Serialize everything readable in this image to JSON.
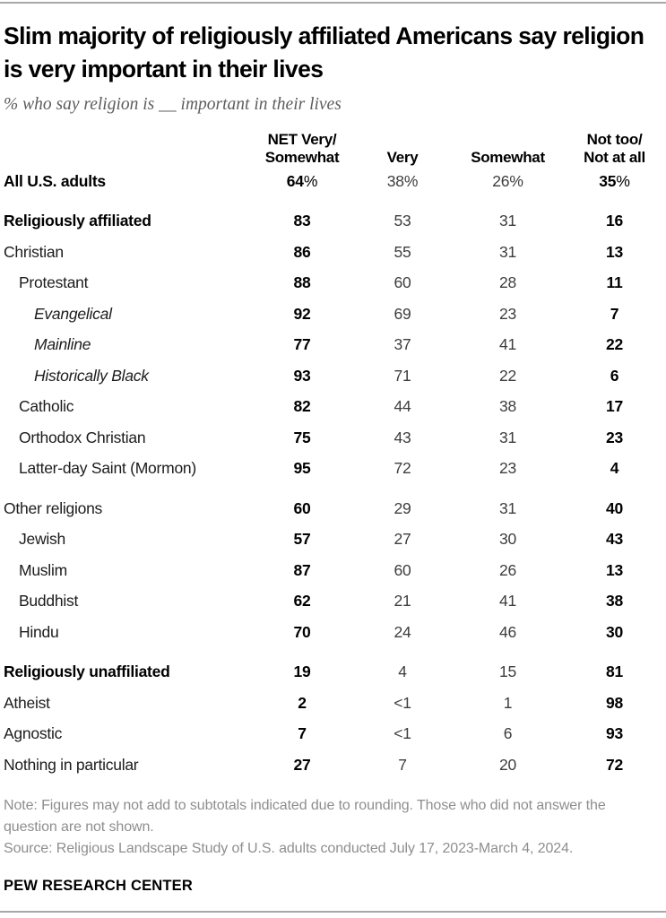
{
  "chart_data": {
    "type": "table",
    "title": "Slim majority of religiously affiliated Americans say religion is very important in their lives",
    "subtitle": "% who say religion is __ important in their lives",
    "columns": [
      "NET Very/\nSomewhat",
      "Very",
      "Somewhat",
      "Not too/\nNot at all"
    ],
    "percent_sign": "%",
    "bold_columns": [
      0,
      3
    ],
    "rows": [
      {
        "label": "All U.S. adults",
        "indent": 0,
        "bold": true,
        "italic": false,
        "gap_before": false,
        "percent_suffix": true,
        "values": [
          "64",
          "38",
          "26",
          "35"
        ]
      },
      {
        "label": "Religiously affiliated",
        "indent": 0,
        "bold": true,
        "italic": false,
        "gap_before": true,
        "percent_suffix": false,
        "values": [
          "83",
          "53",
          "31",
          "16"
        ]
      },
      {
        "label": "Christian",
        "indent": 0,
        "bold": false,
        "italic": false,
        "gap_before": false,
        "percent_suffix": false,
        "values": [
          "86",
          "55",
          "31",
          "13"
        ]
      },
      {
        "label": "Protestant",
        "indent": 1,
        "bold": false,
        "italic": false,
        "gap_before": false,
        "percent_suffix": false,
        "values": [
          "88",
          "60",
          "28",
          "11"
        ]
      },
      {
        "label": "Evangelical",
        "indent": 2,
        "bold": false,
        "italic": true,
        "gap_before": false,
        "percent_suffix": false,
        "values": [
          "92",
          "69",
          "23",
          "7"
        ]
      },
      {
        "label": "Mainline",
        "indent": 2,
        "bold": false,
        "italic": true,
        "gap_before": false,
        "percent_suffix": false,
        "values": [
          "77",
          "37",
          "41",
          "22"
        ]
      },
      {
        "label": "Historically Black",
        "indent": 2,
        "bold": false,
        "italic": true,
        "gap_before": false,
        "percent_suffix": false,
        "values": [
          "93",
          "71",
          "22",
          "6"
        ]
      },
      {
        "label": "Catholic",
        "indent": 1,
        "bold": false,
        "italic": false,
        "gap_before": false,
        "percent_suffix": false,
        "values": [
          "82",
          "44",
          "38",
          "17"
        ]
      },
      {
        "label": "Orthodox Christian",
        "indent": 1,
        "bold": false,
        "italic": false,
        "gap_before": false,
        "percent_suffix": false,
        "values": [
          "75",
          "43",
          "31",
          "23"
        ]
      },
      {
        "label": "Latter-day Saint (Mormon)",
        "indent": 1,
        "bold": false,
        "italic": false,
        "gap_before": false,
        "percent_suffix": false,
        "values": [
          "95",
          "72",
          "23",
          "4"
        ]
      },
      {
        "label": "Other religions",
        "indent": 0,
        "bold": false,
        "italic": false,
        "gap_before": true,
        "percent_suffix": false,
        "values": [
          "60",
          "29",
          "31",
          "40"
        ]
      },
      {
        "label": "Jewish",
        "indent": 1,
        "bold": false,
        "italic": false,
        "gap_before": false,
        "percent_suffix": false,
        "values": [
          "57",
          "27",
          "30",
          "43"
        ]
      },
      {
        "label": "Muslim",
        "indent": 1,
        "bold": false,
        "italic": false,
        "gap_before": false,
        "percent_suffix": false,
        "values": [
          "87",
          "60",
          "26",
          "13"
        ]
      },
      {
        "label": "Buddhist",
        "indent": 1,
        "bold": false,
        "italic": false,
        "gap_before": false,
        "percent_suffix": false,
        "values": [
          "62",
          "21",
          "41",
          "38"
        ]
      },
      {
        "label": "Hindu",
        "indent": 1,
        "bold": false,
        "italic": false,
        "gap_before": false,
        "percent_suffix": false,
        "values": [
          "70",
          "24",
          "46",
          "30"
        ]
      },
      {
        "label": "Religiously unaffiliated",
        "indent": 0,
        "bold": true,
        "italic": false,
        "gap_before": true,
        "percent_suffix": false,
        "values": [
          "19",
          "4",
          "15",
          "81"
        ]
      },
      {
        "label": "Atheist",
        "indent": 0,
        "bold": false,
        "italic": false,
        "gap_before": false,
        "percent_suffix": false,
        "values": [
          "2",
          "<1",
          "1",
          "98"
        ]
      },
      {
        "label": "Agnostic",
        "indent": 0,
        "bold": false,
        "italic": false,
        "gap_before": false,
        "percent_suffix": false,
        "values": [
          "7",
          "<1",
          "6",
          "93"
        ]
      },
      {
        "label": "Nothing in particular",
        "indent": 0,
        "bold": false,
        "italic": false,
        "gap_before": false,
        "percent_suffix": false,
        "values": [
          "27",
          "7",
          "20",
          "72"
        ]
      }
    ],
    "note": "Note: Figures may not add to subtotals indicated due to rounding. Those who did not answer the question are not shown.",
    "source": "Source: Religious Landscape Study of U.S. adults conducted July 17, 2023-March 4, 2024.",
    "brand": "PEW RESEARCH CENTER"
  }
}
